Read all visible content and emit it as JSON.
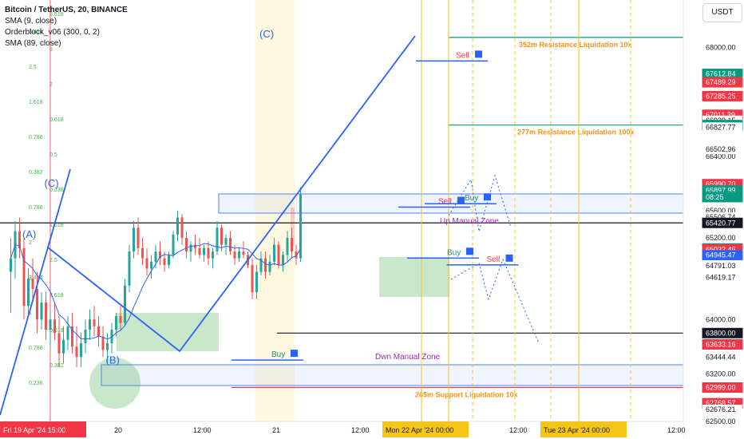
{
  "header": {
    "symbol": "Bitcoin / TetherUS, 20, BINANCE",
    "indicator_1": "SMA (9, close)",
    "indicator_2": "Orderblock_v06 (300, 0, 2)",
    "indicator_3": "SMA (89, close)",
    "currency_button": "USDT"
  },
  "colors": {
    "candle_up": "#26a69a",
    "candle_down": "#ef5350",
    "wave_line": "#2962ff",
    "sma_line": "#2962ff",
    "resistance": "#089981",
    "support": "#f23645",
    "liq_text": "#f7931a",
    "manual_zone": "#9c27b0",
    "vertical_marker": "#f5c518",
    "session_fill": "#fff8e1"
  },
  "chart_data": {
    "type": "candlestick",
    "symbol": "BTC/USDT",
    "timeframe": "20",
    "ylim": [
      62500,
      68700
    ],
    "price_axis": [
      "68000.00",
      "66400.00",
      "65600.00",
      "65200.00",
      "64000.00",
      "63200.00"
    ],
    "time_axis": [
      {
        "label": "20",
        "t": 14
      },
      {
        "label": "12:00",
        "t": 32
      },
      {
        "label": "21",
        "t": 50
      },
      {
        "label": "12:00",
        "t": 68
      },
      {
        "label": "12:00",
        "t": 104
      },
      {
        "label": "12:00",
        "t": 140
      }
    ],
    "time_tags": [
      {
        "label": "Fri 19 Apr '24   15:00",
        "t": 0
      },
      {
        "label": "Mon 22 Apr '24   00:00",
        "t": 86
      },
      {
        "label": "Tue 23 Apr '24   00:00",
        "t": 122
      }
    ],
    "price_tags": [
      {
        "label": "67612.84",
        "price": 67612.84,
        "color": "#089981"
      },
      {
        "label": "67489.29",
        "price": 67489.29,
        "color": "#f23645"
      },
      {
        "label": "67285.25",
        "price": 67285.25,
        "color": "#f23645"
      },
      {
        "label": "67011.39",
        "price": 67011.39,
        "color": "#f23645"
      },
      {
        "label": "66929.15",
        "price": 66929.15,
        "color": "#ffffff"
      },
      {
        "label": "66860.00",
        "price": 66860.0,
        "color": "#089981"
      },
      {
        "label": "66827.77",
        "price": 66827.77,
        "color": "#ffffff"
      },
      {
        "label": "66520.80",
        "price": 66520.8,
        "color": "#ffffff"
      },
      {
        "label": "66502.96",
        "price": 66502.96,
        "color": "#ffffff"
      },
      {
        "label": "65990.70",
        "price": 65990.7,
        "color": "#f23645"
      },
      {
        "label": "65897.99",
        "price": 65897.99,
        "color": "#089981"
      },
      {
        "label": "08:25",
        "price": 65800,
        "color": "#089981"
      },
      {
        "label": "65506.74",
        "price": 65506.74,
        "color": "#ffffff"
      },
      {
        "label": "65420.77",
        "price": 65420.77,
        "color": "#131722"
      },
      {
        "label": "65044.76",
        "price": 65044.76,
        "color": "#089981"
      },
      {
        "label": "65032.46",
        "price": 65032.46,
        "color": "#f23645"
      },
      {
        "label": "64948.96",
        "price": 64948.96,
        "color": "#ffffff"
      },
      {
        "label": "64945.47",
        "price": 64945.47,
        "color": "#2962ff"
      },
      {
        "label": "64801.49",
        "price": 64801.49,
        "color": "#ffffff"
      },
      {
        "label": "64791.03",
        "price": 64791.03,
        "color": "#ffffff"
      },
      {
        "label": "64619.17",
        "price": 64619.17,
        "color": "#ffffff"
      },
      {
        "label": "63800.00",
        "price": 63800.0,
        "color": "#131722"
      },
      {
        "label": "63633.16",
        "price": 63633.16,
        "color": "#f23645"
      },
      {
        "label": "63444.44",
        "price": 63444.44,
        "color": "#ffffff"
      },
      {
        "label": "62999.00",
        "price": 62999.0,
        "color": "#f23645"
      },
      {
        "label": "62768.57",
        "price": 62768.57,
        "color": "#f23645"
      },
      {
        "label": "62676.21",
        "price": 62676.21,
        "color": "#ffffff"
      },
      {
        "label": "62500.00",
        "price": 62500.0,
        "color": "#ffffff"
      }
    ],
    "candles": [
      [
        0,
        64700,
        65200,
        64100,
        64900
      ],
      [
        1,
        64900,
        65450,
        64600,
        65300
      ],
      [
        2,
        65300,
        65500,
        64900,
        65050
      ],
      [
        3,
        65050,
        65200,
        64000,
        64200
      ],
      [
        4,
        64200,
        64750,
        64050,
        64600
      ],
      [
        5,
        64600,
        64900,
        64300,
        64450
      ],
      [
        6,
        64450,
        64700,
        63800,
        64000
      ],
      [
        7,
        64000,
        64400,
        63850,
        64250
      ],
      [
        8,
        64250,
        64400,
        63700,
        63850
      ],
      [
        9,
        63850,
        64150,
        63600,
        64000
      ],
      [
        10,
        64000,
        64250,
        63700,
        63800
      ],
      [
        11,
        63800,
        64050,
        63300,
        63500
      ],
      [
        12,
        63500,
        63900,
        63350,
        63700
      ],
      [
        13,
        63700,
        64050,
        63550,
        63900
      ],
      [
        14,
        63900,
        64100,
        63500,
        63600
      ],
      [
        15,
        63600,
        63900,
        63300,
        63450
      ],
      [
        16,
        63450,
        63800,
        63300,
        63650
      ],
      [
        17,
        63650,
        64000,
        63500,
        63850
      ],
      [
        18,
        63850,
        64150,
        63700,
        64000
      ],
      [
        19,
        64000,
        64200,
        63750,
        63900
      ],
      [
        20,
        63900,
        64050,
        63600,
        63750
      ],
      [
        21,
        63750,
        63900,
        63450,
        63550
      ],
      [
        22,
        63550,
        63800,
        63350,
        63650
      ],
      [
        23,
        63650,
        63950,
        63500,
        63850
      ],
      [
        24,
        63850,
        64100,
        63750,
        64050
      ],
      [
        25,
        64050,
        64200,
        63850,
        63950
      ],
      [
        26,
        63950,
        64600,
        63900,
        64500
      ],
      [
        27,
        64500,
        65100,
        64400,
        65000
      ],
      [
        28,
        65000,
        65450,
        64900,
        65350
      ],
      [
        29,
        65350,
        65500,
        64950,
        65050
      ],
      [
        30,
        65050,
        65200,
        64800,
        64900
      ],
      [
        31,
        64900,
        65050,
        64650,
        64750
      ],
      [
        32,
        64750,
        64950,
        64600,
        64850
      ],
      [
        33,
        64850,
        65100,
        64750,
        65000
      ],
      [
        34,
        65000,
        65150,
        64800,
        64900
      ],
      [
        35,
        64900,
        65000,
        64700,
        64800
      ],
      [
        36,
        64800,
        65000,
        64750,
        64950
      ],
      [
        37,
        64950,
        65300,
        64900,
        65250
      ],
      [
        38,
        65250,
        65600,
        65150,
        65500
      ],
      [
        39,
        65500,
        65550,
        65100,
        65200
      ],
      [
        40,
        65200,
        65300,
        64900,
        65000
      ],
      [
        41,
        65000,
        65150,
        64850,
        65100
      ],
      [
        42,
        65100,
        65250,
        64950,
        65050
      ],
      [
        43,
        65050,
        65200,
        64900,
        64950
      ],
      [
        44,
        64950,
        65100,
        64850,
        65050
      ],
      [
        45,
        65050,
        65150,
        64800,
        64900
      ],
      [
        46,
        64900,
        65050,
        64750,
        65000
      ],
      [
        47,
        65000,
        65450,
        64950,
        65350
      ],
      [
        48,
        65350,
        65400,
        65000,
        65100
      ],
      [
        49,
        65100,
        65250,
        64950,
        65200
      ],
      [
        50,
        65200,
        65300,
        64950,
        65000
      ],
      [
        51,
        65000,
        65100,
        64800,
        64900
      ],
      [
        52,
        64900,
        65050,
        64850,
        65000
      ],
      [
        53,
        65000,
        65150,
        64900,
        64950
      ],
      [
        54,
        64950,
        65000,
        64750,
        64800
      ],
      [
        55,
        64800,
        64900,
        64300,
        64400
      ],
      [
        56,
        64400,
        64800,
        64300,
        64700
      ],
      [
        57,
        64700,
        65000,
        64650,
        64900
      ],
      [
        58,
        64900,
        65000,
        64600,
        64700
      ],
      [
        59,
        64700,
        64950,
        64650,
        64850
      ],
      [
        60,
        64850,
        65200,
        64800,
        65100
      ],
      [
        61,
        65100,
        65150,
        64750,
        64800
      ],
      [
        62,
        64800,
        65000,
        64700,
        64950
      ],
      [
        63,
        64950,
        65300,
        64850,
        65200
      ],
      [
        64,
        65200,
        65350,
        64900,
        65000
      ],
      [
        65,
        65000,
        65100,
        64800,
        64900
      ],
      [
        66,
        64900,
        65950,
        64850,
        65850
      ]
    ],
    "wave_labels": [
      {
        "text": "(A)",
        "t": 4,
        "price": 65200
      },
      {
        "text": "(B)",
        "t": 23,
        "price": 63350
      },
      {
        "text": "(C)",
        "t": 9,
        "price": 65950
      },
      {
        "text": "(C)",
        "t": 58,
        "price": 68150
      }
    ],
    "levels": [
      {
        "label": "352m Resistance Liquidation 10x",
        "price": 68150,
        "kind": "resistance"
      },
      {
        "label": "277m Resistance Liquidation 100x",
        "price": 66860,
        "kind": "resistance"
      },
      {
        "label": "265m Support Liquidation 10x",
        "price": 62999,
        "kind": "support"
      },
      {
        "label": "",
        "price": 65420.77,
        "kind": "black"
      },
      {
        "label": "",
        "price": 63800,
        "kind": "black"
      }
    ],
    "zones": [
      {
        "label": "Up Manual Zone",
        "from": 65506.74,
        "to": 65600
      },
      {
        "label": "Dwn Manual Zone",
        "from": 63100,
        "to": 63300
      }
    ],
    "signals": [
      {
        "text": "Sell",
        "t": 70,
        "price": 67850
      },
      {
        "text": "Sell",
        "t": 66,
        "price": 65700
      },
      {
        "text": "Buy",
        "t": 72,
        "price": 65750
      },
      {
        "text": "Buy",
        "t": 68,
        "price": 64950
      },
      {
        "text": "Sell",
        "t": 77,
        "price": 64850
      },
      {
        "text": "Buy",
        "t": 28,
        "price": 63450
      }
    ],
    "fib_labels": [
      "3.618",
      "3.414",
      "3",
      "2.5",
      "2",
      "1.618",
      "0.618",
      "0.786",
      "0.5",
      "0.382",
      "0.236",
      "0.786",
      "1.618",
      "2",
      "2.5",
      "3.414",
      "3.618",
      "1",
      "0.618",
      "0.786",
      "0.382",
      "0.236"
    ]
  }
}
